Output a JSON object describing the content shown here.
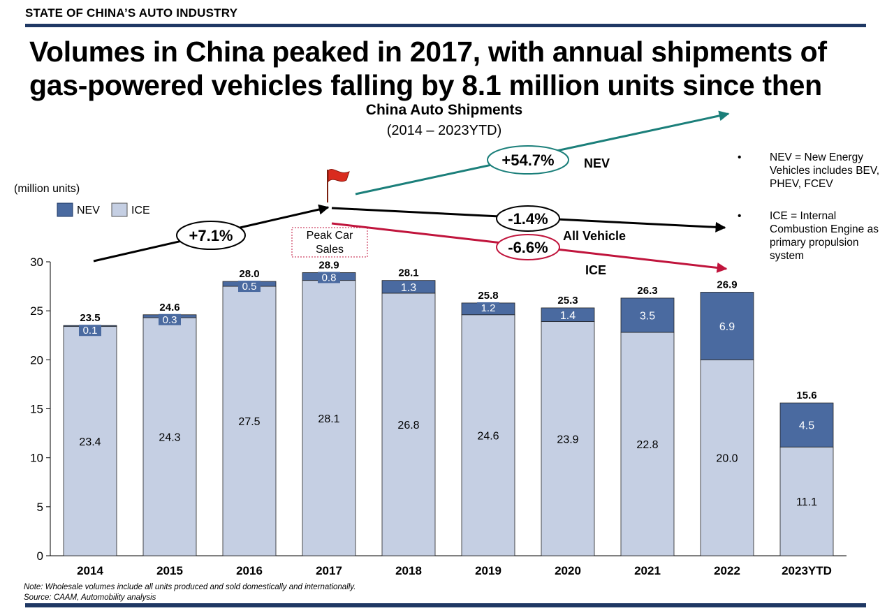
{
  "header": {
    "section": "STATE OF CHINA’S AUTO INDUSTRY",
    "headline_line1": "Volumes in China peaked in 2017, with annual shipments of",
    "headline_line2": "gas-powered vehicles falling by 8.1 million units since then"
  },
  "colors": {
    "brand_navy": "#1f3864",
    "nev": "#4a6aa0",
    "ice": "#c5cfe3",
    "growth_green": "#1b7f7a",
    "decline_red": "#c0143c"
  },
  "notes": {
    "nev_bullet": "•",
    "nev_text": "NEV = New Energy Vehicles includes BEV, PHEV, FCEV",
    "ice_bullet": "•",
    "ice_text": "ICE = Internal Combustion Engine as primary propulsion system"
  },
  "footer": {
    "note": "Note: Wholesale volumes include all units produced and sold domestically and internationally.",
    "source": "Source: CAAM, Automobility analysis"
  },
  "chart_data": {
    "type": "bar",
    "stacked": true,
    "title": "China Auto Shipments",
    "subtitle": "(2014 – 2023YTD)",
    "ylabel": "(million units)",
    "ylim": [
      0,
      30
    ],
    "yticks": [
      0,
      5,
      10,
      15,
      20,
      25,
      30
    ],
    "grid": false,
    "legend_position": "top-left",
    "categories": [
      "2014",
      "2015",
      "2016",
      "2017",
      "2018",
      "2019",
      "2020",
      "2021",
      "2022",
      "2023YTD"
    ],
    "series": [
      {
        "name": "ICE",
        "color": "#c5cfe3",
        "values": [
          23.4,
          24.3,
          27.5,
          28.1,
          26.8,
          24.6,
          23.9,
          22.8,
          20.0,
          11.1
        ],
        "labels": [
          "23.4",
          "24.3",
          "27.5",
          "28.1",
          "26.8",
          "24.6",
          "23.9",
          "22.8",
          "20.0",
          "11.1"
        ]
      },
      {
        "name": "NEV",
        "color": "#4a6aa0",
        "values": [
          0.1,
          0.3,
          0.5,
          0.8,
          1.3,
          1.2,
          1.4,
          3.5,
          6.9,
          4.5
        ],
        "labels": [
          "0.1",
          "0.3",
          "0.5",
          "0.8",
          "1.3",
          "1.2",
          "1.4",
          "3.5",
          "6.9",
          "4.5"
        ]
      }
    ],
    "totals": [
      23.5,
      24.6,
      28.0,
      28.9,
      28.1,
      25.8,
      25.3,
      26.3,
      26.9,
      15.6
    ],
    "total_labels": [
      "23.5",
      "24.6",
      "28.0",
      "28.9",
      "28.1",
      "25.8",
      "25.3",
      "26.3",
      "26.9",
      "15.6"
    ],
    "annotations": {
      "peak_label_line1": "Peak Car",
      "peak_label_line2": "Sales",
      "growth_before_peak": "+7.1%",
      "nev_change": "+54.7%",
      "nev_label": "NEV",
      "all_vehicle_change": "-1.4%",
      "all_vehicle_label": "All Vehicle",
      "ice_change": "-6.6%",
      "ice_label": "ICE"
    }
  }
}
